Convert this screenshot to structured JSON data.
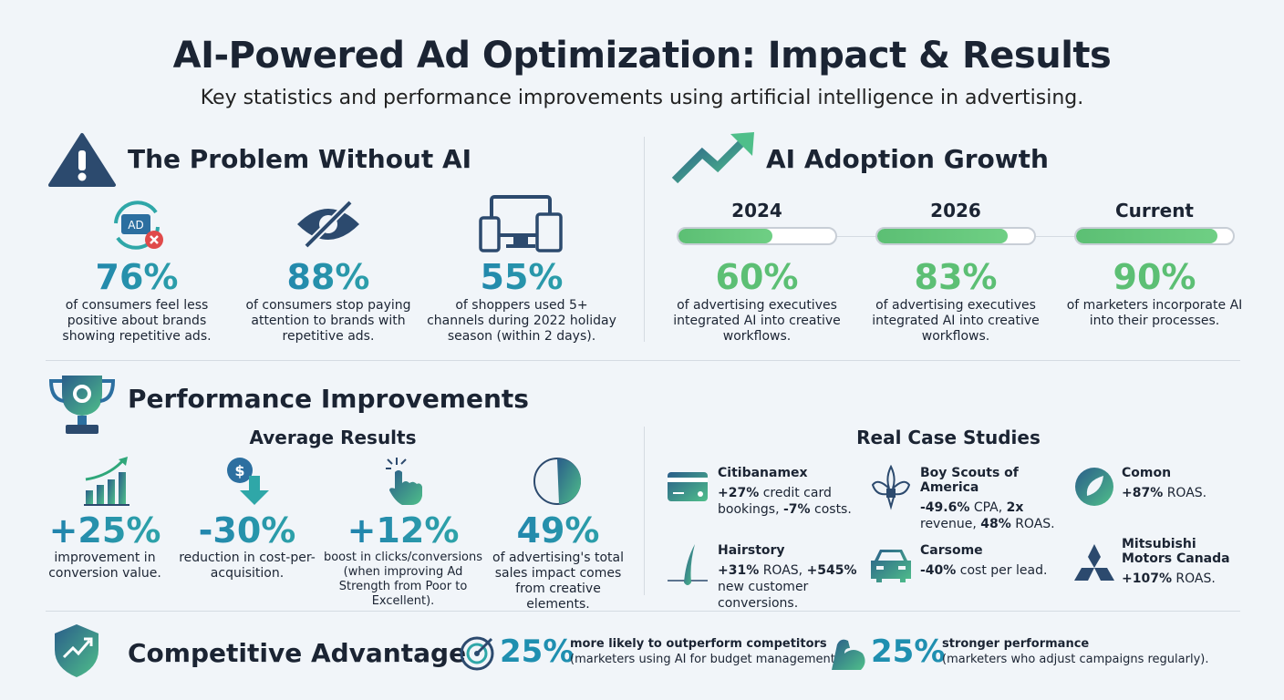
{
  "header": {
    "title": "AI-Powered Ad Optimization: Impact & Results",
    "subtitle": "Key statistics and performance improvements using artificial intelligence in advertising."
  },
  "problem": {
    "title": "The Problem Without AI",
    "icon": "warning-icon",
    "stats": [
      {
        "value": "76%",
        "text": "of consumers feel less positive about brands showing repetitive ads.",
        "icon": "ad-repeat-icon"
      },
      {
        "value": "88%",
        "text": "of consumers stop paying attention to brands with repetitive ads.",
        "icon": "eye-slash-icon"
      },
      {
        "value": "55%",
        "text": "of shoppers used 5+ channels during 2022 holiday season (within 2 days).",
        "icon": "devices-icon"
      }
    ]
  },
  "adoption": {
    "title": "AI Adoption Growth",
    "icon": "trend-arrow-icon",
    "items": [
      {
        "label": "2024",
        "value": "60%",
        "progress": 60,
        "text": "of advertising executives integrated AI into creative workflows."
      },
      {
        "label": "2026",
        "value": "83%",
        "progress": 83,
        "text": "of advertising executives integrated AI into creative workflows."
      },
      {
        "label": "Current",
        "value": "90%",
        "progress": 90,
        "text": "of marketers incorporate AI into their processes."
      }
    ]
  },
  "performance": {
    "title": "Performance Improvements",
    "icon": "trophy-gear-icon",
    "avg_title": "Average Results",
    "avg": [
      {
        "value": "+25%",
        "text": "improvement in conversion value.",
        "icon": "bar-chart-up-icon"
      },
      {
        "value": "-30%",
        "text": "reduction in cost-per-acquisition.",
        "icon": "dollar-down-icon"
      },
      {
        "value": "+12%",
        "text": "boost in clicks/conversions (when improving Ad Strength from Poor to Excellent).",
        "icon": "click-hand-icon"
      },
      {
        "value": "49%",
        "text": "of advertising's total sales impact comes from creative elements.",
        "icon": "pie-half-icon"
      }
    ],
    "cases_title": "Real Case Studies",
    "cases": [
      {
        "name": "Citibanamex",
        "parts": [
          [
            "+27%",
            " credit card bookings, "
          ],
          [
            "-7%",
            " costs."
          ]
        ],
        "icon": "credit-card-icon"
      },
      {
        "name": "Boy Scouts of America",
        "parts": [
          [
            "-49.6%",
            " CPA, "
          ],
          [
            "2x",
            " revenue, "
          ],
          [
            "48%",
            " ROAS."
          ]
        ],
        "icon": "fleur-de-lis-icon"
      },
      {
        "name": "Comon",
        "parts": [
          [
            "+87%",
            " ROAS."
          ]
        ],
        "icon": "leaf-circle-icon"
      },
      {
        "name": "Hairstory",
        "parts": [
          [
            "+31%",
            " ROAS, "
          ],
          [
            "+545%",
            " new customer conversions."
          ]
        ],
        "icon": "hair-strand-icon"
      },
      {
        "name": "Carsome",
        "parts": [
          [
            "-40%",
            " cost per lead."
          ]
        ],
        "icon": "car-icon"
      },
      {
        "name": "Mitsubishi Motors Canada",
        "parts": [
          [
            "+107%",
            " ROAS."
          ]
        ],
        "icon": "mitsubishi-logo-icon"
      }
    ]
  },
  "advantage": {
    "title": "Competitive Advantage",
    "icon": "shield-trend-icon",
    "items": [
      {
        "value": "25%",
        "headline": "more likely to outperform competitors",
        "text": "(marketers using AI for budget management).",
        "icon": "target-icon"
      },
      {
        "value": "25%",
        "headline": "stronger performance",
        "text": "(marketers who adjust campaigns regularly).",
        "icon": "muscle-arm-icon"
      }
    ]
  },
  "colors": {
    "teal": "#1f8fb0",
    "green": "#5cbf74",
    "navy": "#2c4a6e",
    "text": "#1b2433"
  }
}
